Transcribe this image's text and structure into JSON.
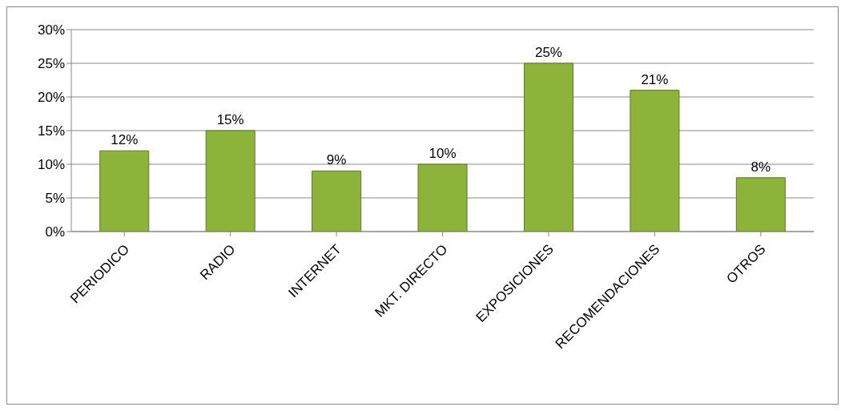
{
  "chart_data": {
    "type": "bar",
    "categories": [
      "PERIODICO",
      "RADIO",
      "INTERNET",
      "MKT. DIRECTO",
      "EXPOSICIONES",
      "RECOMENDACIONES",
      "OTROS"
    ],
    "values": [
      12,
      15,
      9,
      10,
      25,
      21,
      8
    ],
    "value_labels": [
      "12%",
      "15%",
      "9%",
      "10%",
      "25%",
      "21%",
      "8%"
    ],
    "color": "#8db33a",
    "ylim": [
      0,
      30
    ],
    "yticks": [
      {
        "value": 0,
        "label": "0%"
      },
      {
        "value": 5,
        "label": "5%"
      },
      {
        "value": 10,
        "label": "10%"
      },
      {
        "value": 15,
        "label": "15%"
      },
      {
        "value": 20,
        "label": "20%"
      },
      {
        "value": 25,
        "label": "25%"
      },
      {
        "value": 30,
        "label": "30%"
      }
    ],
    "grid": "y",
    "legend": false
  }
}
